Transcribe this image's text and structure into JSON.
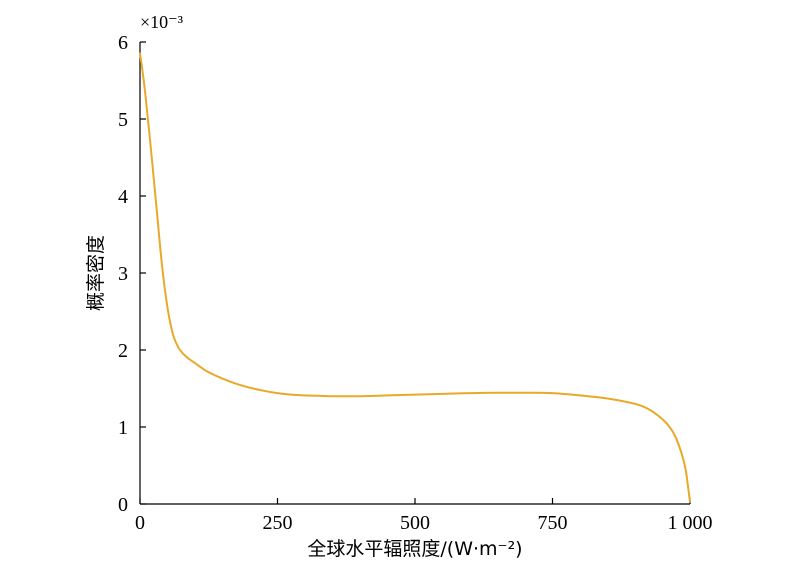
{
  "chart_data": {
    "type": "line",
    "title": "",
    "xlabel": "全球水平辐照度/(W·m⁻²)",
    "ylabel": "概率密度",
    "y_multiplier_label": "×10⁻³",
    "xlim": [
      0,
      1000
    ],
    "ylim": [
      0,
      6
    ],
    "x_ticks": [
      0,
      250,
      500,
      750,
      1000
    ],
    "x_tick_labels": [
      "0",
      "250",
      "500",
      "750",
      "1 000"
    ],
    "y_ticks": [
      0,
      1,
      2,
      3,
      4,
      5,
      6
    ],
    "y_tick_labels": [
      "0",
      "1",
      "2",
      "3",
      "4",
      "5",
      "6"
    ],
    "grid": false,
    "colors": {
      "line": "#E8A92A",
      "axis": "#000000"
    },
    "series": [
      {
        "x": [
          0,
          5,
          10,
          20,
          30,
          40,
          50,
          60,
          70,
          80,
          90,
          100,
          120,
          140,
          160,
          180,
          200,
          225,
          250,
          275,
          300,
          325,
          350,
          375,
          400,
          450,
          500,
          550,
          600,
          650,
          700,
          750,
          800,
          850,
          900,
          925,
          950,
          965,
          975,
          985,
          992,
          996,
          1000
        ],
        "y": [
          5.85,
          5.6,
          5.3,
          4.6,
          3.85,
          3.1,
          2.55,
          2.2,
          2.03,
          1.94,
          1.88,
          1.83,
          1.73,
          1.66,
          1.6,
          1.55,
          1.51,
          1.47,
          1.44,
          1.42,
          1.41,
          1.405,
          1.4,
          1.4,
          1.4,
          1.41,
          1.42,
          1.43,
          1.44,
          1.445,
          1.445,
          1.44,
          1.41,
          1.37,
          1.3,
          1.23,
          1.1,
          0.98,
          0.85,
          0.65,
          0.45,
          0.25,
          0.03
        ]
      }
    ]
  }
}
